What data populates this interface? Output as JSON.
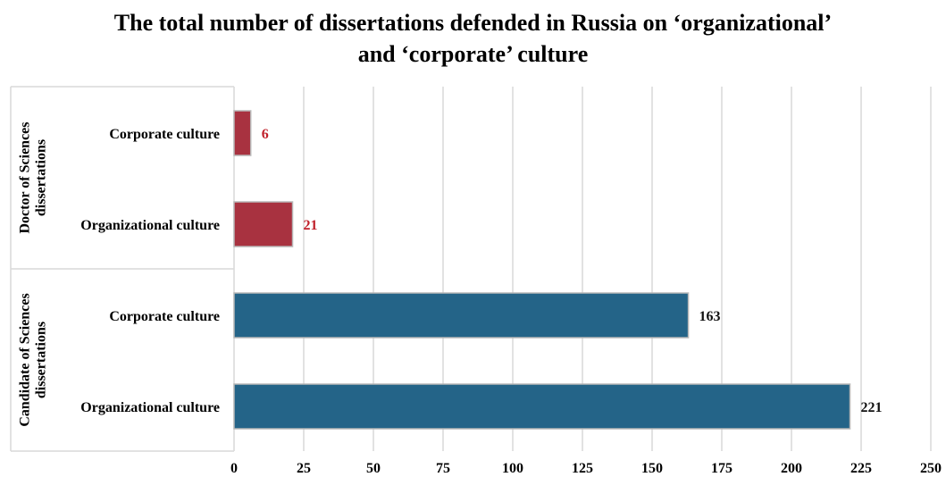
{
  "chart_data": {
    "type": "bar",
    "orientation": "horizontal",
    "title_lines": [
      "The total number of dissertations defended in Russia on ‘organizational’",
      "and ‘corporate’ culture"
    ],
    "groups": [
      {
        "name": "Doctor of Sciences dissertations",
        "name_lines": [
          "Doctor of Sciences",
          "dissertations"
        ],
        "color": "#a83240",
        "label_color": "#c0202a",
        "bars": [
          {
            "label": "Corporate culture",
            "value": 6
          },
          {
            "label": "Organizational culture",
            "value": 21
          }
        ]
      },
      {
        "name": "Candidate of Sciences dissertations",
        "name_lines": [
          "Candidate of Sciences",
          "dissertations"
        ],
        "color": "#246488",
        "label_color": "#111111",
        "bars": [
          {
            "label": "Corporate culture",
            "value": 163
          },
          {
            "label": "Organizational culture",
            "value": 221
          }
        ]
      }
    ],
    "xlim": [
      0,
      250
    ],
    "xticks": [
      "0",
      "25",
      "50",
      "75",
      "100",
      "125",
      "150",
      "175",
      "200",
      "225",
      "250"
    ],
    "grid": true,
    "legend": "none"
  }
}
